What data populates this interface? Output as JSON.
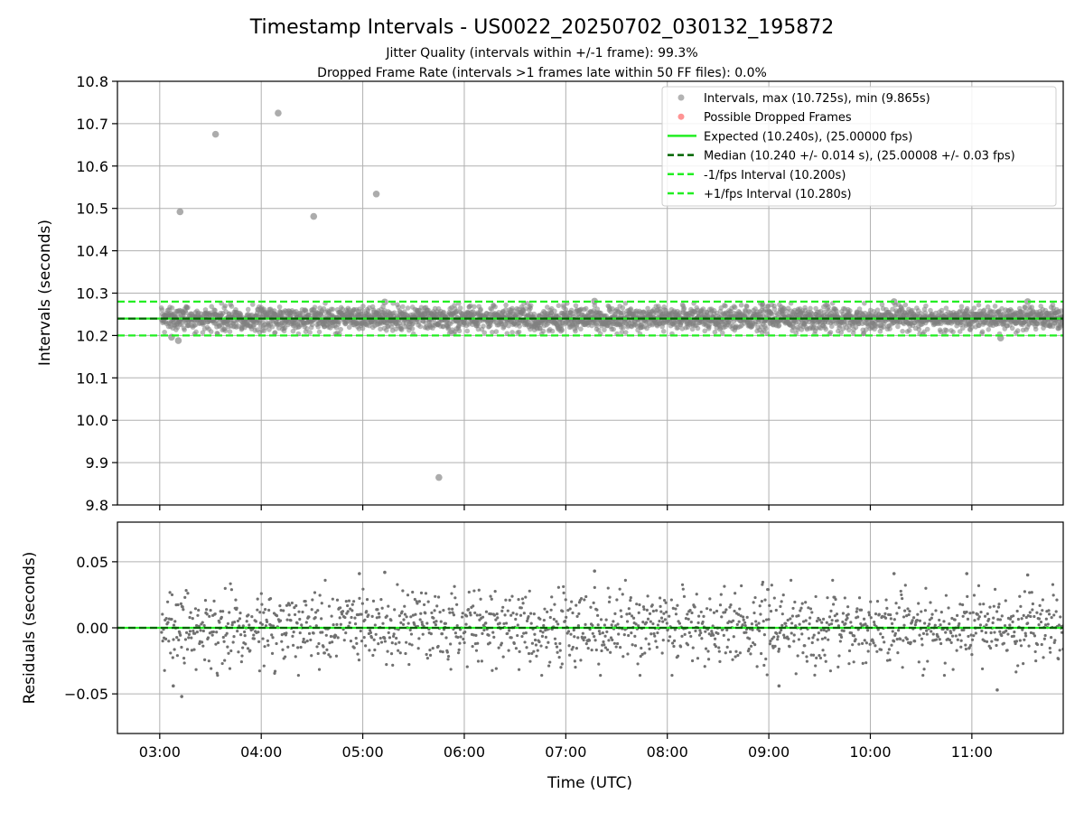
{
  "figure": {
    "title": "Timestamp Intervals - US0022_20250702_030132_195872",
    "subtitle_1": "Jitter Quality (intervals within +/-1 frame): 99.3%",
    "subtitle_2": "Dropped Frame Rate (intervals >1 frames late within 50 FF files): 0.0%"
  },
  "colors": {
    "intervals": "#808080",
    "dropped": "#ff4d4d",
    "expected": "#22ee22",
    "median": "#006400",
    "bounds": "#22ee22",
    "grid": "#b0b0b0"
  },
  "chart_data": [
    {
      "type": "scatter",
      "ylabel": "Intervals (seconds)",
      "xlim": [
        "02:35",
        "11:54"
      ],
      "ylim": [
        9.8,
        10.8
      ],
      "grid": true,
      "legend_position": "top-right",
      "y_ticks": [
        "9.8",
        "9.9",
        "10.0",
        "10.1",
        "10.2",
        "10.3",
        "10.4",
        "10.5",
        "10.6",
        "10.7",
        "10.8"
      ],
      "reference_lines": [
        {
          "name": "Expected (10.240s), (25.00000 fps)",
          "y": 10.24,
          "style": "solid",
          "color": "#22ee22"
        },
        {
          "name": "Median (10.240 +/- 0.014 s), (25.00008 +/- 0.03 fps)",
          "y": 10.24,
          "style": "dashed",
          "color": "#006400"
        },
        {
          "name": "-1/fps Interval (10.200s)",
          "y": 10.2,
          "style": "dashed",
          "color": "#22ee22"
        },
        {
          "name": "+1/fps Interval (10.280s)",
          "y": 10.28,
          "style": "dashed",
          "color": "#22ee22"
        }
      ],
      "series": [
        {
          "name": "Intervals, max (10.725s), min (9.865s)",
          "marker": "circle",
          "color": "#808080",
          "band": {
            "x_start": "03:01",
            "x_end": "11:54",
            "center": 10.24,
            "std": 0.014
          },
          "outliers": [
            {
              "x": "03:12",
              "y": 10.492
            },
            {
              "x": "03:33",
              "y": 10.675
            },
            {
              "x": "04:10",
              "y": 10.725
            },
            {
              "x": "04:31",
              "y": 10.481
            },
            {
              "x": "05:08",
              "y": 10.534
            },
            {
              "x": "05:45",
              "y": 9.865
            },
            {
              "x": "03:11",
              "y": 10.188
            },
            {
              "x": "03:07",
              "y": 10.196
            },
            {
              "x": "05:13",
              "y": 10.279
            },
            {
              "x": "07:17",
              "y": 10.281
            },
            {
              "x": "10:14",
              "y": 10.28
            },
            {
              "x": "11:17",
              "y": 10.194
            },
            {
              "x": "11:33",
              "y": 10.28
            }
          ]
        },
        {
          "name": "Possible Dropped Frames",
          "marker": "circle",
          "color": "#ff4d4d",
          "points": []
        }
      ]
    },
    {
      "type": "scatter",
      "xlabel": "Time (UTC)",
      "ylabel": "Residuals (seconds)",
      "xlim": [
        "02:35",
        "11:54"
      ],
      "ylim": [
        -0.08,
        0.08
      ],
      "grid": true,
      "x_ticks": [
        "03:00",
        "04:00",
        "05:00",
        "06:00",
        "07:00",
        "08:00",
        "09:00",
        "10:00",
        "11:00"
      ],
      "y_ticks": [
        "−0.05",
        "0.00",
        "0.05"
      ],
      "y_tick_values": [
        -0.05,
        0.0,
        0.05
      ],
      "reference_lines": [
        {
          "y": 0.0,
          "style": "solid",
          "color": "#22ee22"
        },
        {
          "y": 0.0,
          "style": "dashed",
          "color": "#006400"
        }
      ],
      "series": [
        {
          "marker": "circle",
          "color": "#707070",
          "band": {
            "x_start": "03:01",
            "x_end": "11:54",
            "center": 0.0,
            "std": 0.014
          },
          "outliers": [
            {
              "x": "03:08",
              "y": -0.044
            },
            {
              "x": "03:13",
              "y": -0.052
            },
            {
              "x": "04:58",
              "y": 0.041
            },
            {
              "x": "05:13",
              "y": 0.042
            },
            {
              "x": "07:17",
              "y": 0.043
            },
            {
              "x": "09:06",
              "y": -0.044
            },
            {
              "x": "10:14",
              "y": 0.041
            },
            {
              "x": "10:57",
              "y": 0.041
            },
            {
              "x": "11:15",
              "y": -0.047
            },
            {
              "x": "11:33",
              "y": 0.04
            }
          ]
        }
      ]
    }
  ]
}
